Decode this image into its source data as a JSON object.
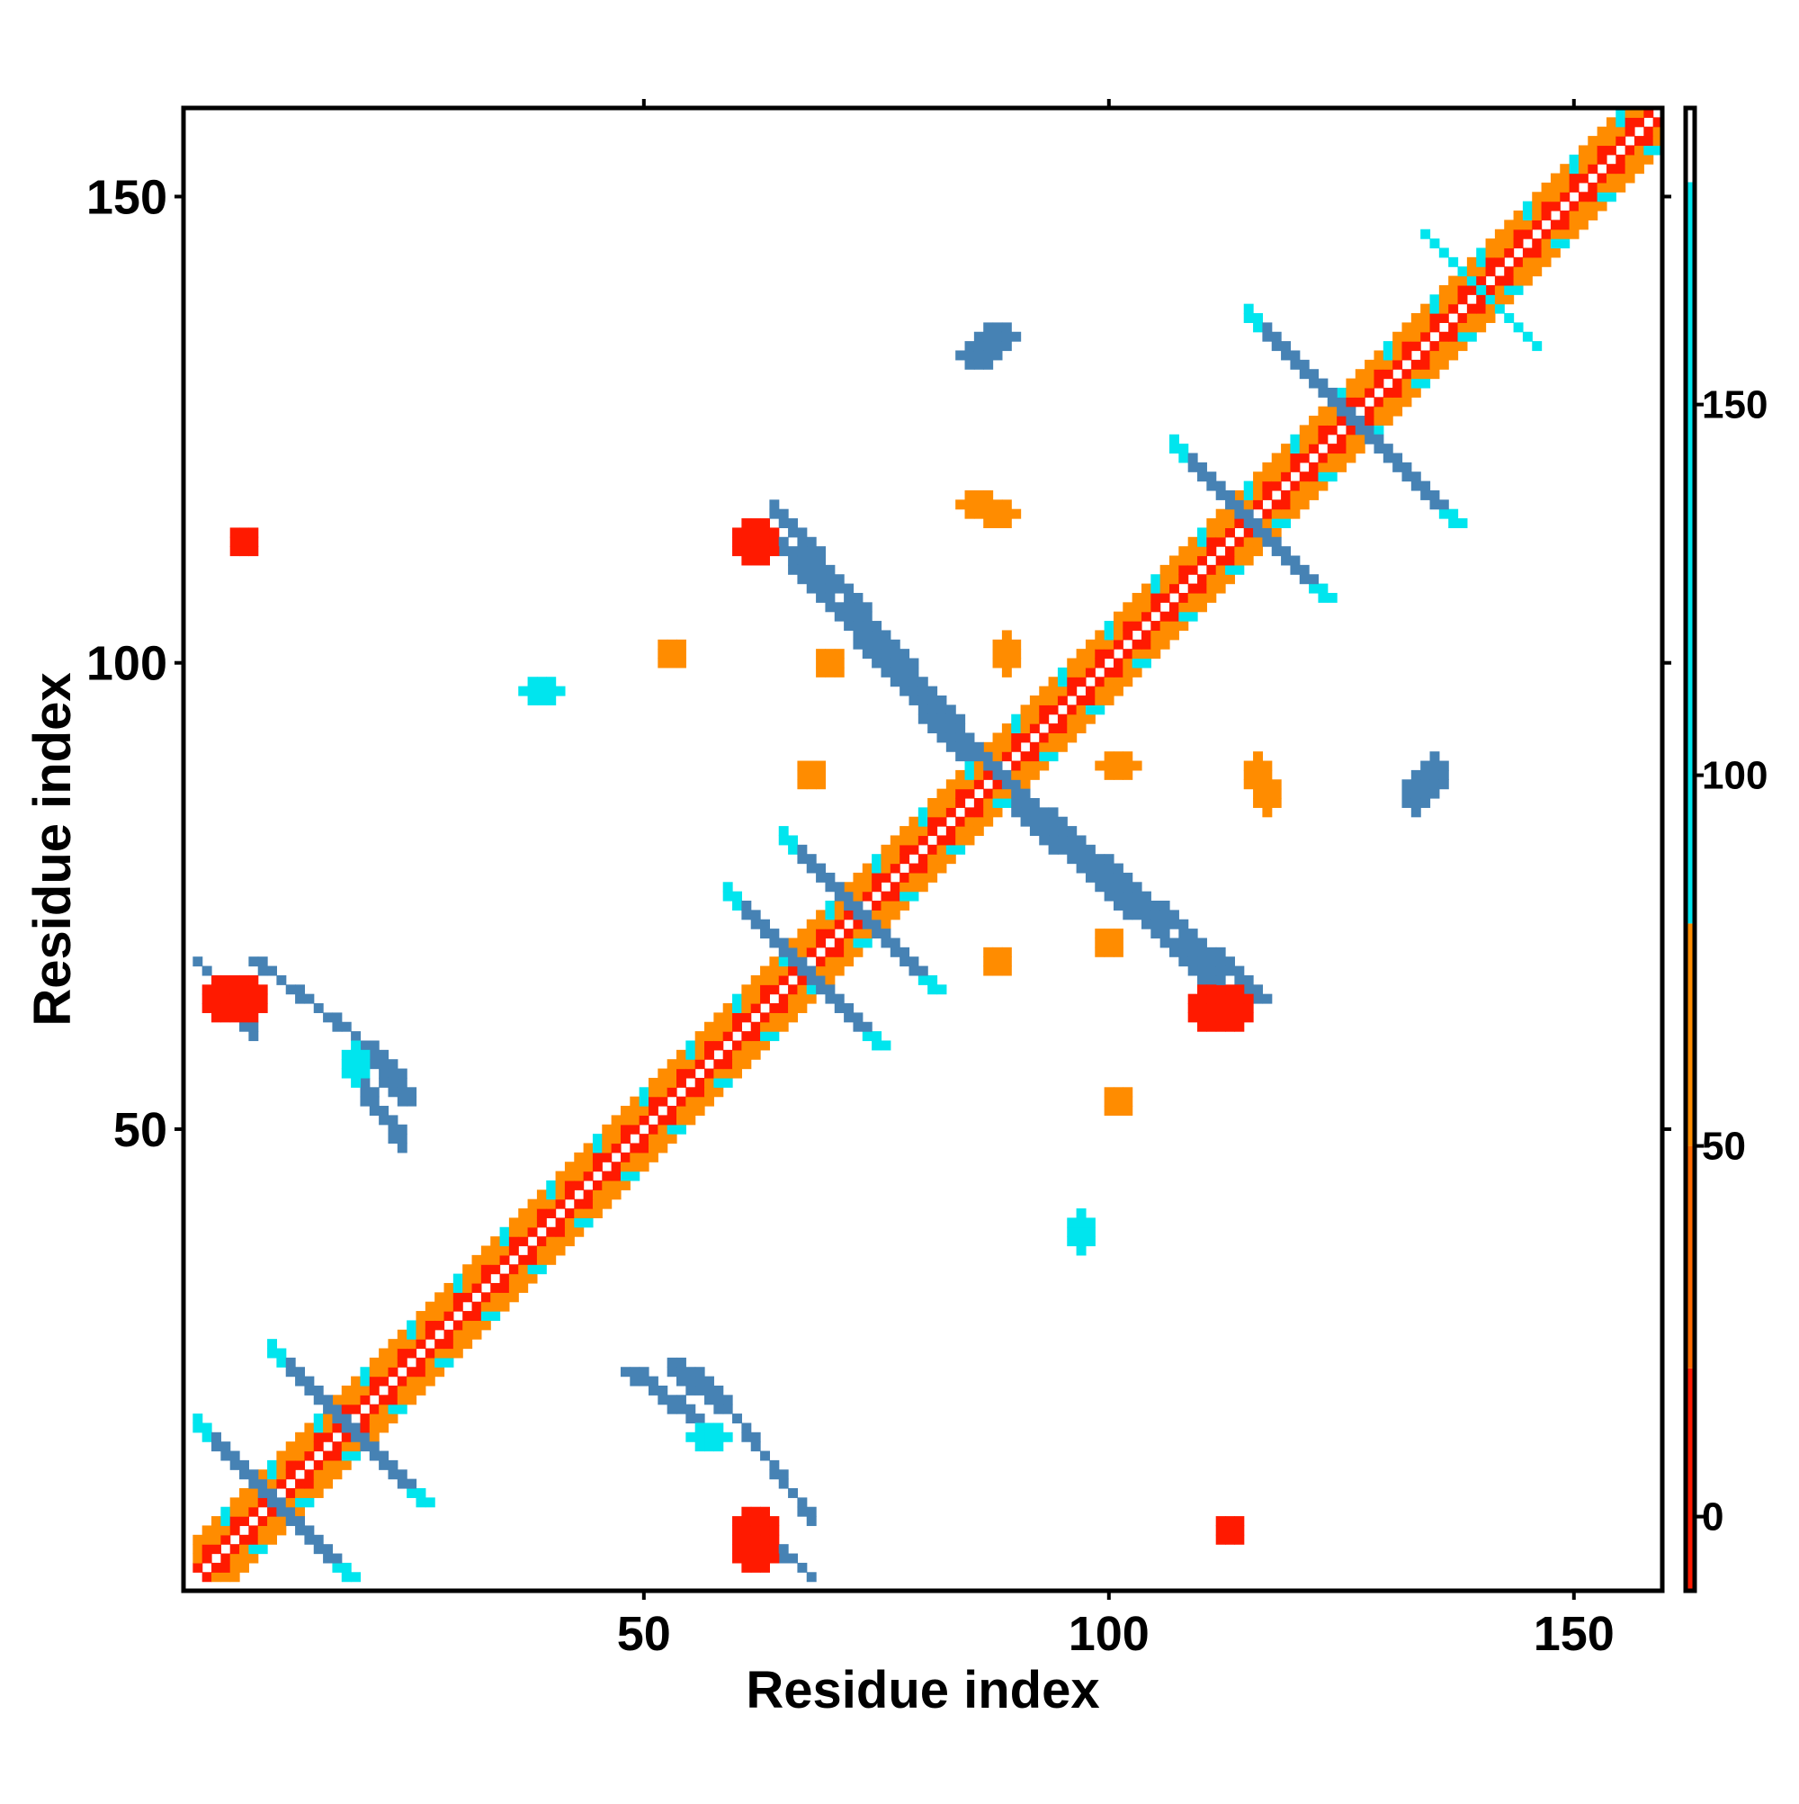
{
  "chart_data": {
    "type": "heatmap",
    "title": "",
    "xlabel": "Residue index",
    "ylabel": "Residue index",
    "xlim": [
      1,
      159
    ],
    "ylim": [
      1,
      159
    ],
    "x_ticks": [
      50,
      100,
      150
    ],
    "y_ticks": [
      50,
      100,
      150
    ],
    "colorbar": {
      "range": [
        -10,
        190
      ],
      "ticks": [
        0,
        50,
        100,
        150
      ],
      "bands": [
        {
          "from": -10,
          "to": 20,
          "color": "#ff1a00"
        },
        {
          "from": 20,
          "to": 50,
          "color": "#ff6a00"
        },
        {
          "from": 50,
          "to": 80,
          "color": "#ff8c00"
        },
        {
          "from": 80,
          "to": 180,
          "color": "#00e5ee"
        },
        {
          "from": 180,
          "to": 190,
          "color": "#ffffff"
        }
      ]
    },
    "value_colors": {
      "low": "#ff1a00",
      "mid": "#ff8c00",
      "high": "#00e5ee",
      "top": "#4682b4"
    },
    "features": [
      {
        "kind": "diagonal",
        "from": 2,
        "to": 158,
        "band": 2
      },
      {
        "kind": "antidiagonal",
        "center": [
          10,
          10
        ],
        "half_length": 8,
        "width": 2,
        "value": 160
      },
      {
        "kind": "antidiagonal",
        "center": [
          18,
          18
        ],
        "half_length": 8,
        "width": 2,
        "value": 160
      },
      {
        "kind": "antidiagonal",
        "center": [
          67,
          67
        ],
        "half_length": 8,
        "width": 2,
        "value": 160
      },
      {
        "kind": "antidiagonal",
        "center": [
          73,
          73
        ],
        "half_length": 8,
        "width": 2,
        "value": 160
      },
      {
        "kind": "antidiagonal",
        "center": [
          88,
          88
        ],
        "half_length": 20,
        "width": 2,
        "value": 150
      },
      {
        "kind": "antidiagonal",
        "center": [
          115,
          115
        ],
        "half_length": 8,
        "width": 2,
        "value": 160
      },
      {
        "kind": "antidiagonal",
        "center": [
          126,
          126
        ],
        "half_length": 11,
        "width": 2,
        "value": 160
      },
      {
        "kind": "antidiagonal",
        "center": [
          140,
          140
        ],
        "half_length": 6,
        "width": 1,
        "value": 120
      },
      {
        "kind": "line",
        "from": [
          8,
          68
        ],
        "to": [
          24,
          56
        ],
        "width": 1,
        "value": 170
      },
      {
        "kind": "line",
        "from": [
          60,
          8
        ],
        "to": [
          68,
          2
        ],
        "width": 1,
        "value": 170
      },
      {
        "kind": "line",
        "from": [
          62,
          115
        ],
        "to": [
          84,
          90
        ],
        "width": 2,
        "value": 160
      },
      {
        "kind": "line",
        "from": [
          92,
          84
        ],
        "to": [
          116,
          64
        ],
        "width": 2,
        "value": 160
      },
      {
        "kind": "line",
        "from": [
          48,
          24
        ],
        "to": [
          56,
          18
        ],
        "width": 2,
        "value": 160
      },
      {
        "kind": "line",
        "from": [
          20,
          58
        ],
        "to": [
          24,
          53
        ],
        "width": 2,
        "value": 160
      },
      {
        "kind": "blob",
        "center": [
          6,
          64
        ],
        "rx": 3,
        "ry": 2,
        "value": 0
      },
      {
        "kind": "blob",
        "center": [
          62,
          6
        ],
        "rx": 2,
        "ry": 3,
        "value": 0
      },
      {
        "kind": "blob",
        "center": [
          62,
          113
        ],
        "rx": 2,
        "ry": 2,
        "value": 0
      },
      {
        "kind": "blob",
        "center": [
          112,
          63
        ],
        "rx": 3,
        "ry": 2,
        "value": 0
      },
      {
        "kind": "blob",
        "center": [
          39,
          97
        ],
        "rx": 2,
        "ry": 1,
        "value": 100
      },
      {
        "kind": "blob",
        "center": [
          97,
          39
        ],
        "rx": 1,
        "ry": 2,
        "value": 100
      },
      {
        "kind": "blob",
        "center": [
          57,
          17
        ],
        "rx": 2,
        "ry": 1,
        "value": 100
      },
      {
        "kind": "blob",
        "center": [
          19,
          57
        ],
        "rx": 1,
        "ry": 2,
        "value": 100
      },
      {
        "kind": "blob",
        "center": [
          68,
          88
        ],
        "rx": 1,
        "ry": 1,
        "value": 60
      },
      {
        "kind": "blob",
        "center": [
          88,
          68
        ],
        "rx": 1,
        "ry": 1,
        "value": 60
      },
      {
        "kind": "blob",
        "center": [
          86,
          117
        ],
        "rx": 2,
        "ry": 1,
        "value": 50
      },
      {
        "kind": "blob",
        "center": [
          117,
          86
        ],
        "rx": 1,
        "ry": 2,
        "value": 50
      },
      {
        "kind": "blob",
        "center": [
          101,
          89
        ],
        "rx": 2,
        "ry": 1,
        "value": 60
      },
      {
        "kind": "blob",
        "center": [
          89,
          101
        ],
        "rx": 1,
        "ry": 2,
        "value": 60
      },
      {
        "kind": "blob",
        "center": [
          116,
          88
        ],
        "rx": 1,
        "ry": 2,
        "value": 50
      },
      {
        "kind": "blob",
        "center": [
          88,
          116
        ],
        "rx": 2,
        "ry": 1,
        "value": 50
      },
      {
        "kind": "blob",
        "center": [
          135,
          88
        ],
        "rx": 1,
        "ry": 2,
        "value": 160
      },
      {
        "kind": "blob",
        "center": [
          88,
          135
        ],
        "rx": 2,
        "ry": 1,
        "value": 160
      },
      {
        "kind": "blob",
        "center": [
          86,
          133
        ],
        "rx": 2,
        "ry": 1,
        "value": 160
      },
      {
        "kind": "blob",
        "center": [
          133,
          86
        ],
        "rx": 1,
        "ry": 2,
        "value": 160
      },
      {
        "kind": "blob",
        "center": [
          113,
          7
        ],
        "rx": 1,
        "ry": 1,
        "value": 0
      },
      {
        "kind": "blob",
        "center": [
          7,
          113
        ],
        "rx": 1,
        "ry": 1,
        "value": 0
      },
      {
        "kind": "blob",
        "center": [
          53,
          101
        ],
        "rx": 1,
        "ry": 1,
        "value": 60
      },
      {
        "kind": "blob",
        "center": [
          101,
          53
        ],
        "rx": 1,
        "ry": 1,
        "value": 60
      },
      {
        "kind": "blob",
        "center": [
          70,
          100
        ],
        "rx": 1,
        "ry": 1,
        "value": 60
      },
      {
        "kind": "blob",
        "center": [
          100,
          70
        ],
        "rx": 1,
        "ry": 1,
        "value": 60
      }
    ]
  }
}
